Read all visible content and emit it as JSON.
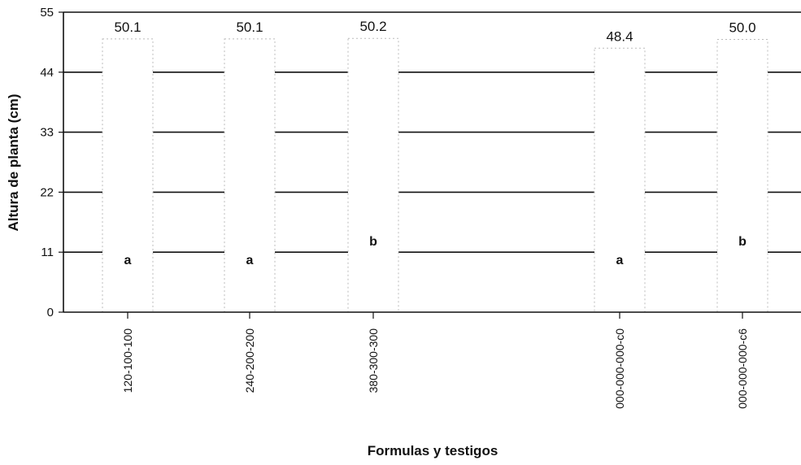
{
  "chart_data": {
    "type": "bar",
    "xlabel": "Formulas y testigos",
    "ylabel": "Altura de planta (cm)",
    "ylim": [
      0,
      55
    ],
    "yticks": [
      0,
      11,
      22,
      33,
      44,
      55
    ],
    "grid": true,
    "categories": [
      "120-100-100",
      "240-200-200",
      "380-300-300",
      "000-000-000-c0",
      "000-000-000-c6"
    ],
    "values": [
      50.1,
      50.1,
      50.2,
      48.4,
      50.0
    ],
    "value_labels": [
      "50.1",
      "50.1",
      "50.2",
      "48.4",
      "50.0"
    ],
    "letters": [
      "a",
      "a",
      "b",
      "a",
      "b"
    ],
    "colors": {
      "bar": "#ffffff",
      "bar_outline": "#bbbbbb",
      "grid": "#111111",
      "text": "#111111"
    }
  }
}
